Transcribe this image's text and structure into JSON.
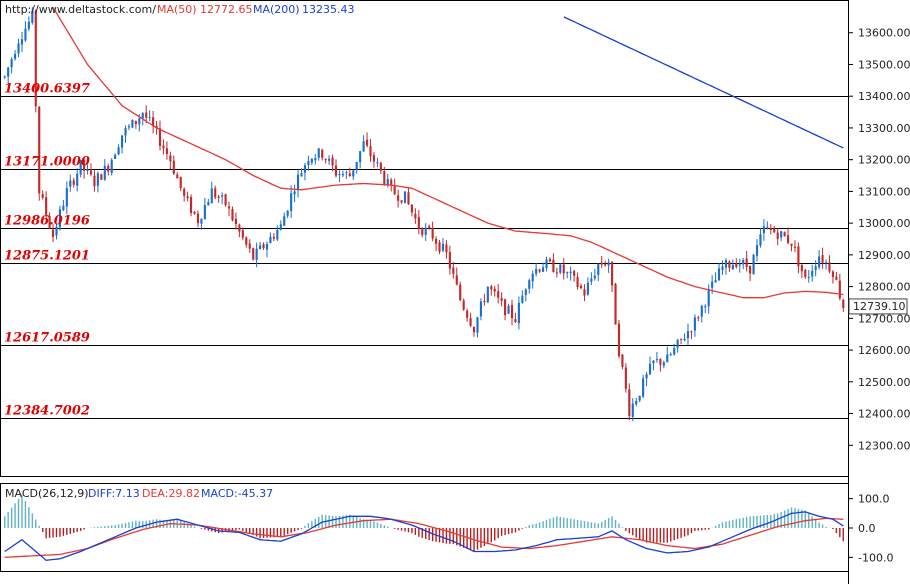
{
  "header": {
    "source": "http://www.deltastock.com/",
    "ma50_label": "MA(50)",
    "ma50_value": "12772.65",
    "ma200_label": "MA(200)",
    "ma200_value": "13235.43"
  },
  "macd_header": {
    "title": "MACD(26,12,9)",
    "diff_text": "DIFF:7.13",
    "dea_text": "DEA:29.82",
    "macd_text": "MACD:-45.37"
  },
  "colors": {
    "up": "#1a6fd1",
    "down": "#c62828",
    "ma50": "#e53935",
    "ma200": "#1a3fd6",
    "level_line": "#000000",
    "level_label": "#e00000",
    "macd_diff": "#1a3fd6",
    "macd_dea": "#e53935",
    "hist_pos": "#5fb3c4",
    "hist_neg": "#b71c1c"
  },
  "chart_data": [
    {
      "type": "candlestick",
      "ylim": [
        12200,
        13700
      ],
      "y_ticks": [
        "12300.00",
        "12400.00",
        "12500.00",
        "12600.00",
        "12700.00",
        "12800.00",
        "12900.00",
        "13000.00",
        "13100.00",
        "13200.00",
        "13300.00",
        "13400.00",
        "13500.00",
        "13600.00"
      ],
      "last_price_label": "12739.10",
      "last_price": 12739.1,
      "levels": [
        {
          "value": 13400.6397,
          "label": "13400.6397"
        },
        {
          "value": 13171.0,
          "label": "13171.0000"
        },
        {
          "value": 12986.0196,
          "label": "12986.0196"
        },
        {
          "value": 12875.1201,
          "label": "12875.1201"
        },
        {
          "value": 12617.0589,
          "label": "12617.0589"
        },
        {
          "value": 12384.7002,
          "label": "12384.7002"
        }
      ],
      "anchors": [
        [
          0,
          13460
        ],
        [
          4,
          13580
        ],
        [
          8,
          13650
        ],
        [
          10,
          13100
        ],
        [
          14,
          12960
        ],
        [
          18,
          13100
        ],
        [
          22,
          13180
        ],
        [
          26,
          13130
        ],
        [
          30,
          13180
        ],
        [
          34,
          13280
        ],
        [
          38,
          13320
        ],
        [
          40,
          13350
        ],
        [
          44,
          13280
        ],
        [
          48,
          13200
        ],
        [
          52,
          13080
        ],
        [
          56,
          13010
        ],
        [
          60,
          13100
        ],
        [
          64,
          13060
        ],
        [
          68,
          12970
        ],
        [
          72,
          12890
        ],
        [
          76,
          12940
        ],
        [
          80,
          12990
        ],
        [
          84,
          13120
        ],
        [
          88,
          13210
        ],
        [
          92,
          13220
        ],
        [
          96,
          13160
        ],
        [
          100,
          13150
        ],
        [
          104,
          13250
        ],
        [
          108,
          13180
        ],
        [
          112,
          13100
        ],
        [
          116,
          13080
        ],
        [
          120,
          12990
        ],
        [
          124,
          12960
        ],
        [
          128,
          12900
        ],
        [
          132,
          12760
        ],
        [
          136,
          12670
        ],
        [
          140,
          12800
        ],
        [
          144,
          12740
        ],
        [
          148,
          12700
        ],
        [
          152,
          12840
        ],
        [
          156,
          12870
        ],
        [
          160,
          12860
        ],
        [
          164,
          12830
        ],
        [
          168,
          12780
        ],
        [
          172,
          12870
        ],
        [
          175,
          12880
        ],
        [
          178,
          12600
        ],
        [
          181,
          12410
        ],
        [
          184,
          12470
        ],
        [
          188,
          12560
        ],
        [
          192,
          12570
        ],
        [
          196,
          12630
        ],
        [
          200,
          12690
        ],
        [
          204,
          12780
        ],
        [
          208,
          12860
        ],
        [
          212,
          12880
        ],
        [
          216,
          12860
        ],
        [
          220,
          12980
        ],
        [
          224,
          12970
        ],
        [
          228,
          12940
        ],
        [
          232,
          12820
        ],
        [
          236,
          12900
        ],
        [
          240,
          12850
        ],
        [
          243,
          12739
        ]
      ],
      "ma50_anchors": [
        [
          14,
          13680
        ],
        [
          24,
          13500
        ],
        [
          34,
          13370
        ],
        [
          44,
          13300
        ],
        [
          54,
          13250
        ],
        [
          64,
          13200
        ],
        [
          72,
          13150
        ],
        [
          80,
          13110
        ],
        [
          86,
          13105
        ],
        [
          96,
          13120
        ],
        [
          104,
          13125
        ],
        [
          112,
          13120
        ],
        [
          118,
          13110
        ],
        [
          124,
          13080
        ],
        [
          132,
          13040
        ],
        [
          140,
          13000
        ],
        [
          148,
          12975
        ],
        [
          156,
          12968
        ],
        [
          164,
          12960
        ],
        [
          170,
          12940
        ],
        [
          176,
          12910
        ],
        [
          184,
          12870
        ],
        [
          192,
          12830
        ],
        [
          200,
          12800
        ],
        [
          208,
          12780
        ],
        [
          214,
          12765
        ],
        [
          220,
          12765
        ],
        [
          226,
          12780
        ],
        [
          232,
          12785
        ],
        [
          238,
          12782
        ],
        [
          243,
          12775
        ]
      ],
      "ma200_anchors": [
        [
          162,
          13650
        ],
        [
          243,
          13237
        ]
      ]
    },
    {
      "type": "macd",
      "ylim": [
        -150,
        150
      ],
      "y_ticks": [
        "100.0",
        "0.0",
        "-100.0"
      ],
      "diff_anchors": [
        [
          0,
          -80
        ],
        [
          5,
          -40
        ],
        [
          8,
          -70
        ],
        [
          12,
          -110
        ],
        [
          16,
          -105
        ],
        [
          22,
          -80
        ],
        [
          30,
          -40
        ],
        [
          38,
          0
        ],
        [
          44,
          20
        ],
        [
          50,
          30
        ],
        [
          56,
          10
        ],
        [
          62,
          -10
        ],
        [
          68,
          -15
        ],
        [
          74,
          -40
        ],
        [
          80,
          -45
        ],
        [
          86,
          -20
        ],
        [
          92,
          20
        ],
        [
          100,
          40
        ],
        [
          106,
          40
        ],
        [
          112,
          30
        ],
        [
          118,
          10
        ],
        [
          124,
          -20
        ],
        [
          130,
          -45
        ],
        [
          136,
          -80
        ],
        [
          142,
          -80
        ],
        [
          148,
          -75
        ],
        [
          154,
          -60
        ],
        [
          160,
          -40
        ],
        [
          166,
          -35
        ],
        [
          172,
          -30
        ],
        [
          176,
          -10
        ],
        [
          180,
          -40
        ],
        [
          186,
          -70
        ],
        [
          192,
          -85
        ],
        [
          198,
          -80
        ],
        [
          204,
          -65
        ],
        [
          210,
          -35
        ],
        [
          216,
          -5
        ],
        [
          222,
          20
        ],
        [
          228,
          50
        ],
        [
          232,
          55
        ],
        [
          236,
          40
        ],
        [
          240,
          30
        ],
        [
          243,
          7.13
        ]
      ],
      "dea_anchors": [
        [
          0,
          -100
        ],
        [
          8,
          -95
        ],
        [
          16,
          -90
        ],
        [
          24,
          -70
        ],
        [
          32,
          -35
        ],
        [
          40,
          -5
        ],
        [
          48,
          15
        ],
        [
          56,
          10
        ],
        [
          64,
          -5
        ],
        [
          72,
          -20
        ],
        [
          80,
          -30
        ],
        [
          88,
          -15
        ],
        [
          96,
          10
        ],
        [
          104,
          25
        ],
        [
          112,
          30
        ],
        [
          120,
          15
        ],
        [
          128,
          -10
        ],
        [
          136,
          -40
        ],
        [
          144,
          -65
        ],
        [
          152,
          -70
        ],
        [
          160,
          -60
        ],
        [
          168,
          -45
        ],
        [
          176,
          -30
        ],
        [
          184,
          -40
        ],
        [
          192,
          -60
        ],
        [
          200,
          -70
        ],
        [
          208,
          -55
        ],
        [
          216,
          -25
        ],
        [
          224,
          5
        ],
        [
          232,
          25
        ],
        [
          238,
          33
        ],
        [
          243,
          29.82
        ]
      ]
    }
  ]
}
